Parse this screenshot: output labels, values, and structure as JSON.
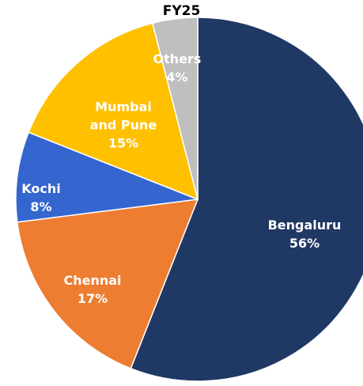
{
  "chart_data": {
    "type": "pie",
    "title": "FY25",
    "categories": [
      "Bengaluru",
      "Chennai",
      "Kochi",
      "Mumbai and Pune",
      "Others"
    ],
    "values": [
      56,
      17,
      8,
      15,
      4
    ],
    "value_labels": [
      "56%",
      "17%",
      "8%",
      "15%",
      "4%"
    ],
    "colors": [
      "#203864",
      "#ed7d31",
      "#3566cf",
      "#ffc000",
      "#bfbfbf"
    ]
  }
}
